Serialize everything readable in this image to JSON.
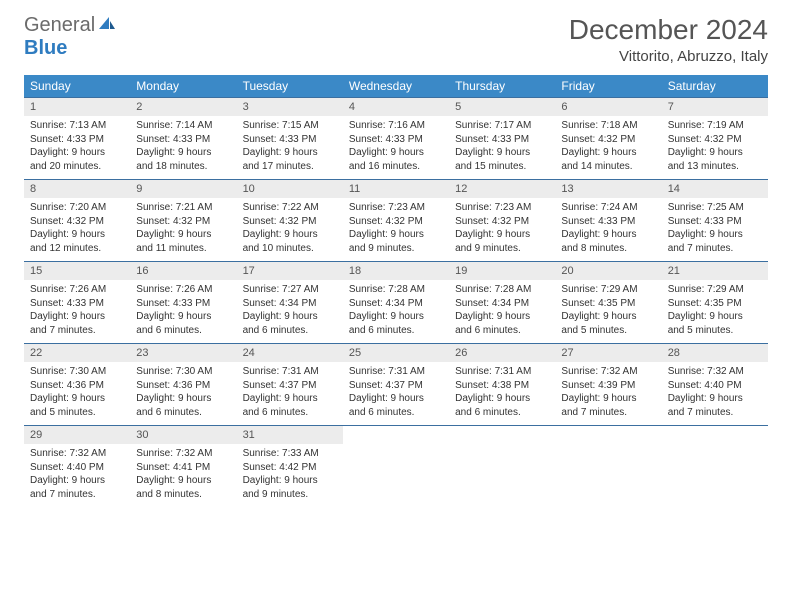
{
  "logo": {
    "general": "General",
    "blue": "Blue"
  },
  "title": {
    "month": "December 2024",
    "location": "Vittorito, Abruzzo, Italy"
  },
  "colors": {
    "header_bg": "#3b89c7",
    "header_text": "#ffffff",
    "daynum_bg": "#ececec",
    "border": "#3b6fa0",
    "logo_general": "#6b6b6b",
    "logo_blue": "#2f7cc0"
  },
  "weekdays": [
    "Sunday",
    "Monday",
    "Tuesday",
    "Wednesday",
    "Thursday",
    "Friday",
    "Saturday"
  ],
  "weeks": [
    [
      {
        "n": "1",
        "sr": "7:13 AM",
        "ss": "4:33 PM",
        "dl": "9 hours and 20 minutes."
      },
      {
        "n": "2",
        "sr": "7:14 AM",
        "ss": "4:33 PM",
        "dl": "9 hours and 18 minutes."
      },
      {
        "n": "3",
        "sr": "7:15 AM",
        "ss": "4:33 PM",
        "dl": "9 hours and 17 minutes."
      },
      {
        "n": "4",
        "sr": "7:16 AM",
        "ss": "4:33 PM",
        "dl": "9 hours and 16 minutes."
      },
      {
        "n": "5",
        "sr": "7:17 AM",
        "ss": "4:33 PM",
        "dl": "9 hours and 15 minutes."
      },
      {
        "n": "6",
        "sr": "7:18 AM",
        "ss": "4:32 PM",
        "dl": "9 hours and 14 minutes."
      },
      {
        "n": "7",
        "sr": "7:19 AM",
        "ss": "4:32 PM",
        "dl": "9 hours and 13 minutes."
      }
    ],
    [
      {
        "n": "8",
        "sr": "7:20 AM",
        "ss": "4:32 PM",
        "dl": "9 hours and 12 minutes."
      },
      {
        "n": "9",
        "sr": "7:21 AM",
        "ss": "4:32 PM",
        "dl": "9 hours and 11 minutes."
      },
      {
        "n": "10",
        "sr": "7:22 AM",
        "ss": "4:32 PM",
        "dl": "9 hours and 10 minutes."
      },
      {
        "n": "11",
        "sr": "7:23 AM",
        "ss": "4:32 PM",
        "dl": "9 hours and 9 minutes."
      },
      {
        "n": "12",
        "sr": "7:23 AM",
        "ss": "4:32 PM",
        "dl": "9 hours and 9 minutes."
      },
      {
        "n": "13",
        "sr": "7:24 AM",
        "ss": "4:33 PM",
        "dl": "9 hours and 8 minutes."
      },
      {
        "n": "14",
        "sr": "7:25 AM",
        "ss": "4:33 PM",
        "dl": "9 hours and 7 minutes."
      }
    ],
    [
      {
        "n": "15",
        "sr": "7:26 AM",
        "ss": "4:33 PM",
        "dl": "9 hours and 7 minutes."
      },
      {
        "n": "16",
        "sr": "7:26 AM",
        "ss": "4:33 PM",
        "dl": "9 hours and 6 minutes."
      },
      {
        "n": "17",
        "sr": "7:27 AM",
        "ss": "4:34 PM",
        "dl": "9 hours and 6 minutes."
      },
      {
        "n": "18",
        "sr": "7:28 AM",
        "ss": "4:34 PM",
        "dl": "9 hours and 6 minutes."
      },
      {
        "n": "19",
        "sr": "7:28 AM",
        "ss": "4:34 PM",
        "dl": "9 hours and 6 minutes."
      },
      {
        "n": "20",
        "sr": "7:29 AM",
        "ss": "4:35 PM",
        "dl": "9 hours and 5 minutes."
      },
      {
        "n": "21",
        "sr": "7:29 AM",
        "ss": "4:35 PM",
        "dl": "9 hours and 5 minutes."
      }
    ],
    [
      {
        "n": "22",
        "sr": "7:30 AM",
        "ss": "4:36 PM",
        "dl": "9 hours and 5 minutes."
      },
      {
        "n": "23",
        "sr": "7:30 AM",
        "ss": "4:36 PM",
        "dl": "9 hours and 6 minutes."
      },
      {
        "n": "24",
        "sr": "7:31 AM",
        "ss": "4:37 PM",
        "dl": "9 hours and 6 minutes."
      },
      {
        "n": "25",
        "sr": "7:31 AM",
        "ss": "4:37 PM",
        "dl": "9 hours and 6 minutes."
      },
      {
        "n": "26",
        "sr": "7:31 AM",
        "ss": "4:38 PM",
        "dl": "9 hours and 6 minutes."
      },
      {
        "n": "27",
        "sr": "7:32 AM",
        "ss": "4:39 PM",
        "dl": "9 hours and 7 minutes."
      },
      {
        "n": "28",
        "sr": "7:32 AM",
        "ss": "4:40 PM",
        "dl": "9 hours and 7 minutes."
      }
    ],
    [
      {
        "n": "29",
        "sr": "7:32 AM",
        "ss": "4:40 PM",
        "dl": "9 hours and 7 minutes."
      },
      {
        "n": "30",
        "sr": "7:32 AM",
        "ss": "4:41 PM",
        "dl": "9 hours and 8 minutes."
      },
      {
        "n": "31",
        "sr": "7:33 AM",
        "ss": "4:42 PM",
        "dl": "9 hours and 9 minutes."
      },
      null,
      null,
      null,
      null
    ]
  ],
  "labels": {
    "sunrise": "Sunrise:",
    "sunset": "Sunset:",
    "daylight": "Daylight:"
  }
}
